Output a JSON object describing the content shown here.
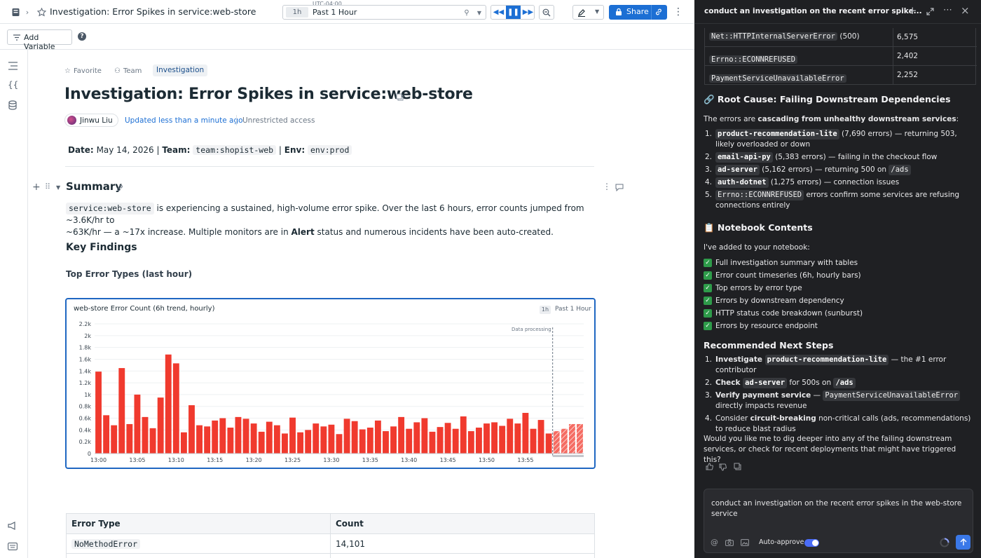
{
  "topbar": {
    "title": "Investigation: Error Spikes in service:web-store",
    "timezone": "UTC-04:00",
    "time_short": "1h",
    "time_label": "Past 1 Hour",
    "share_label": "Share"
  },
  "toolbar": {
    "add_variable": "Add Variable"
  },
  "notebook": {
    "tabs": [
      "Favorite",
      "Team",
      "Investigation"
    ],
    "title": "Investigation: Error Spikes in service:web-store",
    "author": "Jinwu Liu",
    "updated": "Updated less than a minute ago",
    "access": "Unrestricted access",
    "meta": {
      "date_label": "Date:",
      "date_value": "May 14, 2026",
      "sep1": "|",
      "team_label": "Team:",
      "team_value": "team:shopist-web",
      "sep2": "|",
      "env_label": "Env:",
      "env_value": "env:prod"
    },
    "summary_heading": "Summary",
    "summary_code": "service:web-store",
    "summary_text1": " is experiencing a sustained, high-volume error spike. Over the last 6 hours, error counts jumped from ~3.6K/hr to",
    "summary_text2a": "~63K/hr — a ~17x increase. Multiple monitors are in ",
    "summary_bold": "Alert",
    "summary_text2b": " status and numerous incidents have been auto-created.",
    "key_findings": "Key Findings",
    "top_errors_heading": "Top Error Types (last hour)",
    "error_table": {
      "headers": [
        "Error Type",
        "Count"
      ],
      "rows": [
        {
          "type": "NoMethodError",
          "count": "14,101"
        }
      ]
    }
  },
  "chart": {
    "title": "web-store Error Count (6h trend, hourly)",
    "time_short": "1h",
    "time_label": "Past 1 Hour",
    "annotation": "Data processing"
  },
  "chart_data": {
    "type": "bar",
    "title": "web-store Error Count (6h trend, hourly)",
    "ylim": [
      0,
      2200
    ],
    "yticks": [
      0,
      200,
      400,
      600,
      800,
      1000,
      1200,
      1400,
      1600,
      1800,
      2000,
      2200
    ],
    "ytick_labels": [
      "0",
      "0.2k",
      "0.4k",
      "0.6k",
      "0.8k",
      "1k",
      "1.2k",
      "1.4k",
      "1.6k",
      "1.8k",
      "2k",
      "2.2k"
    ],
    "xtick_labels": [
      "13:00",
      "13:05",
      "13:10",
      "13:15",
      "13:20",
      "13:25",
      "13:30",
      "13:35",
      "13:40",
      "13:45",
      "13:50",
      "13:55"
    ],
    "values": [
      1390,
      650,
      480,
      1450,
      500,
      1000,
      620,
      430,
      950,
      1680,
      1530,
      360,
      820,
      480,
      460,
      560,
      600,
      440,
      620,
      590,
      510,
      370,
      540,
      480,
      340,
      610,
      360,
      400,
      510,
      460,
      490,
      330,
      590,
      550,
      410,
      440,
      560,
      380,
      460,
      620,
      420,
      530,
      600,
      370,
      450,
      520,
      420,
      630,
      380,
      440,
      510,
      530,
      470,
      590,
      510,
      690,
      420,
      570,
      340,
      380,
      420,
      500,
      500
    ],
    "processing_from_index": 59,
    "grid": true,
    "legend": "none"
  },
  "panel": {
    "title": "conduct an investigation on the recent error spike...",
    "table_rows": [
      {
        "error": "Net::HTTPInternalServerError",
        "suffix": " (500)",
        "count": "6,575"
      },
      {
        "error": "Errno::ECONNREFUSED",
        "suffix": "",
        "count": "2,402"
      },
      {
        "error": "PaymentServiceUnavailableError",
        "suffix": "",
        "count": "2,252"
      }
    ],
    "root_heading": "🔗 Root Cause: Failing Downstream Dependencies",
    "root_intro_a": "The errors are ",
    "root_intro_b": "cascading from unhealthy downstream services",
    "root_intro_c": ":",
    "root_items": [
      {
        "svc": "product-recommendation-lite",
        "text": " (7,690 errors) — returning 503, likely overloaded or down"
      },
      {
        "svc": "email-api-py",
        "text": " (5,383 errors) — failing in the checkout flow"
      },
      {
        "svc": "ad-server",
        "text": " (5,162 errors) — returning 500 on ",
        "code": "/ads"
      },
      {
        "svc": "auth-dotnet",
        "text": " (1,275 errors) — connection issues"
      },
      {
        "svc": "Errno::ECONNREFUSED",
        "text": " errors confirm some services are refusing connections entirely"
      }
    ],
    "contents_heading": "📋 Notebook Contents",
    "contents_intro": "I've added to your notebook:",
    "contents_items": [
      "Full investigation summary with tables",
      "Error count timeseries (6h, hourly bars)",
      "Top errors by error type",
      "Errors by downstream dependency",
      "HTTP status code breakdown (sunburst)",
      "Errors by resource endpoint"
    ],
    "steps_heading": "Recommended Next Steps",
    "steps": {
      "s1_bold": "Investigate ",
      "s1_code": "product-recommendation-lite",
      "s1_text": " — the #1 error contributor",
      "s2_bold": "Check ",
      "s2_code": "ad-server",
      "s2_text1": " for 500s on ",
      "s2_code2": "/ads",
      "s3_bold": "Verify payment service",
      "s3_text1": " — ",
      "s3_code": "PaymentServiceUnavailableError",
      "s3_text2": " directly impacts revenue",
      "s4_text1": "Consider ",
      "s4_bold": "circuit-breaking",
      "s4_text2": " non-critical calls (ads, recommendations) to reduce blast radius"
    },
    "question": "Would you like me to dig deeper into any of the failing downstream services, or check for recent deployments that might have triggered this?",
    "input_value": "conduct an investigation on the recent error spikes in the web-store service",
    "auto_approve": "Auto-approve"
  },
  "colors": {
    "accent": "#1c6fd4",
    "bar": "#f03a2e",
    "panel_bg": "#1f2023"
  },
  "icons": [
    "notebook-icon",
    "star-icon",
    "chevron-right-icon",
    "pin-icon",
    "rewind-icon",
    "pause-icon",
    "fast-forward-icon",
    "zoom-out-icon",
    "pencil-icon",
    "lock-icon",
    "link-icon",
    "kebab-icon",
    "filter-icon",
    "help-icon",
    "plus-icon",
    "expand-icon",
    "thumbs-up-icon",
    "thumbs-down-icon",
    "copy-icon",
    "send-icon"
  ]
}
